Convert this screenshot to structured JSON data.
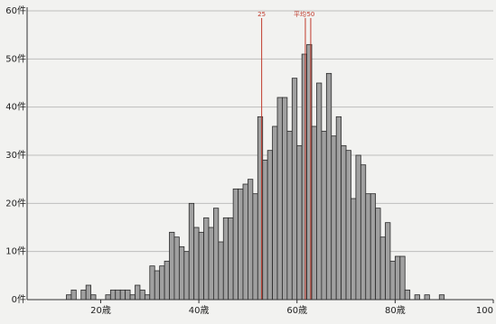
{
  "chart_data": {
    "type": "bar",
    "title": "",
    "xlabel": "",
    "ylabel": "",
    "x_ticks": [
      {
        "value": 20,
        "label": "20歳"
      },
      {
        "value": 40,
        "label": "40歳"
      },
      {
        "value": 60,
        "label": "60歳"
      },
      {
        "value": 80,
        "label": "80歳"
      },
      {
        "value": 100,
        "label": "100"
      }
    ],
    "y_ticks": [
      {
        "value": 0,
        "label": "0件"
      },
      {
        "value": 10,
        "label": "10件"
      },
      {
        "value": 20,
        "label": "20件"
      },
      {
        "value": 30,
        "label": "30件"
      },
      {
        "value": 40,
        "label": "40件"
      },
      {
        "value": 50,
        "label": "50件"
      },
      {
        "value": 60,
        "label": "60件"
      }
    ],
    "xlim": [
      5,
      100
    ],
    "ylim": [
      0,
      60
    ],
    "grid": true,
    "markers": [
      {
        "x": 52.8,
        "label": "25"
      },
      {
        "x": 61.7,
        "label": "平均"
      },
      {
        "x": 62.8,
        "label": "50"
      }
    ],
    "x": [
      13,
      14,
      15,
      16,
      17,
      18,
      19,
      20,
      21,
      22,
      23,
      24,
      25,
      26,
      27,
      28,
      29,
      30,
      31,
      32,
      33,
      34,
      35,
      36,
      37,
      38,
      39,
      40,
      41,
      42,
      43,
      44,
      45,
      46,
      47,
      48,
      49,
      50,
      51,
      52,
      53,
      54,
      55,
      56,
      57,
      58,
      59,
      60,
      61,
      62,
      63,
      64,
      65,
      66,
      67,
      68,
      69,
      70,
      71,
      72,
      73,
      74,
      75,
      76,
      77,
      78,
      79,
      80,
      81,
      82,
      83,
      84,
      85,
      86,
      87,
      88,
      89,
      90,
      91,
      92,
      93,
      94,
      95,
      96,
      97,
      98,
      99,
      100
    ],
    "values": [
      1,
      2,
      0,
      2,
      3,
      1,
      0,
      0,
      1,
      2,
      2,
      2,
      2,
      1,
      3,
      2,
      1,
      7,
      6,
      7,
      8,
      14,
      13,
      11,
      10,
      20,
      15,
      14,
      17,
      15,
      19,
      12,
      17,
      17,
      23,
      23,
      24,
      25,
      22,
      38,
      29,
      31,
      36,
      42,
      42,
      35,
      46,
      32,
      51,
      53,
      36,
      45,
      35,
      47,
      34,
      38,
      32,
      31,
      21,
      30,
      28,
      22,
      22,
      19,
      13,
      16,
      8,
      9,
      9,
      2,
      0,
      1,
      0,
      1,
      0,
      0,
      1,
      0,
      0,
      0,
      0,
      0,
      0,
      0,
      0,
      0,
      0,
      0
    ],
    "bar_color": "#a0a0a0",
    "bar_edge": "#2a2a2a",
    "marker_color": "#c0392b",
    "axis_color": "#333333",
    "grid_color": "#bdbdbd"
  }
}
